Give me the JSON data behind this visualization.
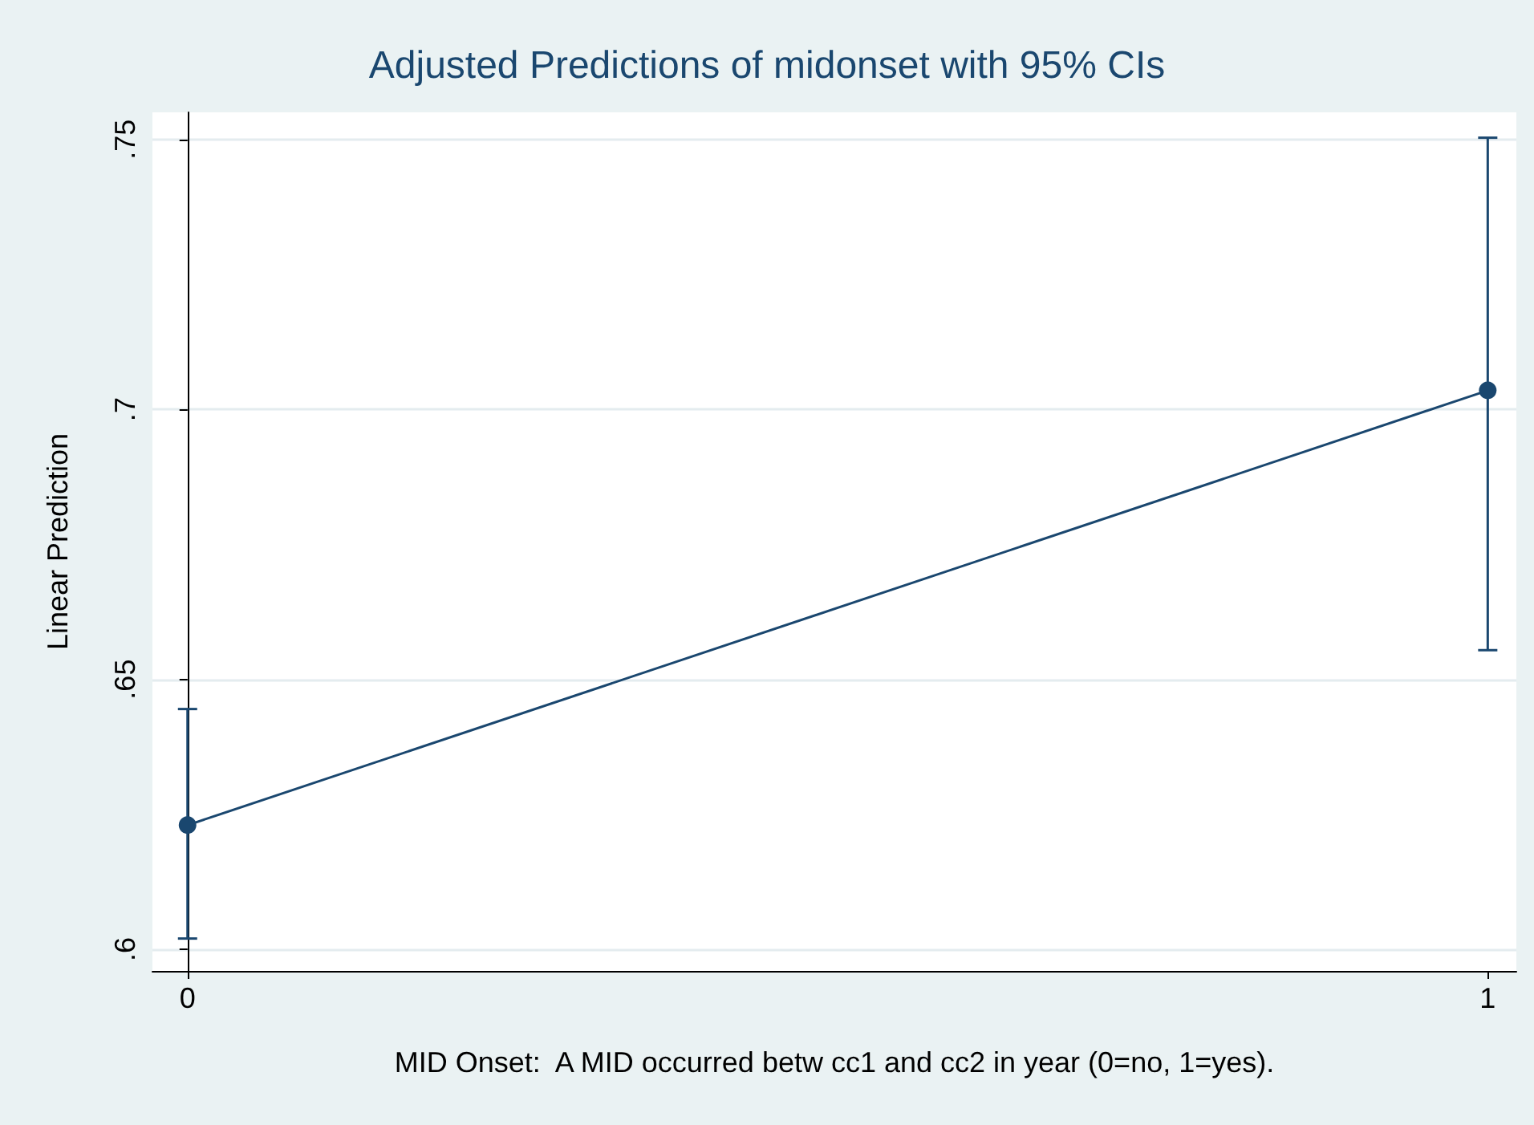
{
  "chart_data": {
    "type": "line",
    "title": "Adjusted Predictions of midonset with 95% CIs",
    "xlabel": "MID Onset:  A MID occurred betw cc1 and cc2 in year (0=no, 1=yes).",
    "ylabel": "Linear Prediction",
    "x": [
      0,
      1
    ],
    "series": [
      {
        "color": "#1a476f",
        "values": [
          0.623,
          0.7035
        ],
        "errors": [
          [
            0.602,
            0.6445
          ],
          [
            0.6554,
            0.7503
          ]
        ]
      }
    ],
    "xlim": [
      -0.027,
      1.022
    ],
    "xticks": [
      0,
      1
    ],
    "ylim": [
      0.596,
      0.755
    ],
    "yticks": [
      {
        "value": 0.6,
        "label": ".6"
      },
      {
        "value": 0.65,
        "label": ".65"
      },
      {
        "value": 0.7,
        "label": ".7"
      },
      {
        "value": 0.75,
        "label": ".75"
      }
    ],
    "grid": "y",
    "marker": "circle",
    "line_style": "solid"
  }
}
